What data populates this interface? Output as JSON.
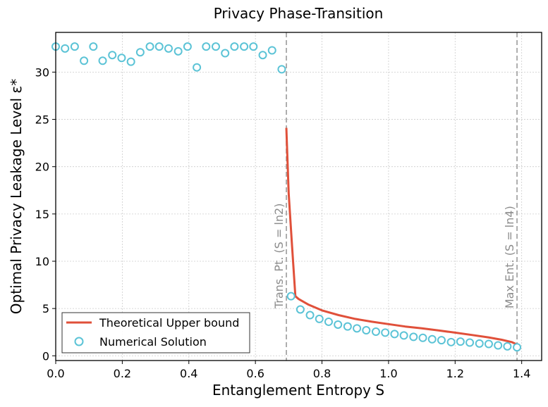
{
  "chart_data": {
    "type": "line+scatter",
    "title": "Privacy Phase-Transition",
    "xlabel": "Entanglement Entropy S",
    "ylabel": "Optimal Privacy Leakage Level ε*",
    "xlim": [
      0.0,
      1.46
    ],
    "ylim": [
      -0.5,
      34.2
    ],
    "xticks": [
      0.0,
      0.2,
      0.4,
      0.6,
      0.8,
      1.0,
      1.2,
      1.4
    ],
    "xtick_labels": [
      "0.0",
      "0.2",
      "0.4",
      "0.6",
      "0.8",
      "1.0",
      "1.2",
      "1.4"
    ],
    "yticks": [
      0,
      5,
      10,
      15,
      20,
      25,
      30
    ],
    "ytick_labels": [
      "0",
      "5",
      "10",
      "15",
      "20",
      "25",
      "30"
    ],
    "grid": true,
    "legend_position": "bottom-left",
    "series": [
      {
        "name": "Theoretical Upper bound",
        "kind": "line",
        "color": "#e0503a",
        "x": [
          0.693,
          0.7,
          0.71,
          0.72,
          0.73,
          0.76,
          0.8,
          0.85,
          0.9,
          0.95,
          1.0,
          1.05,
          1.1,
          1.15,
          1.2,
          1.25,
          1.3,
          1.34,
          1.37,
          1.386
        ],
        "y": [
          24.1,
          17.2,
          11.6,
          6.3,
          6.0,
          5.4,
          4.8,
          4.3,
          3.9,
          3.6,
          3.35,
          3.1,
          2.9,
          2.68,
          2.45,
          2.2,
          1.95,
          1.7,
          1.45,
          1.2
        ]
      },
      {
        "name": "Numerical Solution",
        "kind": "scatter",
        "color": "#5bc3d6",
        "x": [
          0.0,
          0.028,
          0.057,
          0.085,
          0.113,
          0.141,
          0.17,
          0.198,
          0.226,
          0.254,
          0.283,
          0.311,
          0.339,
          0.368,
          0.396,
          0.424,
          0.452,
          0.481,
          0.509,
          0.537,
          0.566,
          0.594,
          0.622,
          0.65,
          0.679,
          0.707,
          0.735,
          0.764,
          0.792,
          0.82,
          0.848,
          0.877,
          0.905,
          0.933,
          0.962,
          0.99,
          1.018,
          1.046,
          1.075,
          1.103,
          1.131,
          1.159,
          1.188,
          1.216,
          1.244,
          1.273,
          1.301,
          1.329,
          1.357,
          1.386
        ],
        "y": [
          32.7,
          32.5,
          32.7,
          31.2,
          32.7,
          31.2,
          31.8,
          31.5,
          31.1,
          32.1,
          32.7,
          32.7,
          32.5,
          32.2,
          32.7,
          30.5,
          32.7,
          32.7,
          32.0,
          32.7,
          32.7,
          32.7,
          31.8,
          32.3,
          30.3,
          6.3,
          4.9,
          4.3,
          3.9,
          3.6,
          3.3,
          3.1,
          2.9,
          2.7,
          2.55,
          2.45,
          2.3,
          2.15,
          2.0,
          1.9,
          1.75,
          1.65,
          1.45,
          1.5,
          1.4,
          1.3,
          1.25,
          1.1,
          1.0,
          0.9
        ]
      }
    ],
    "annotations": [
      {
        "text": "Trans. Pt. (S = ln2)",
        "x": 0.693,
        "y": 5.0
      },
      {
        "text": "Max Ent. (S = ln4)",
        "x": 1.386,
        "y": 5.0
      }
    ]
  },
  "colors": {
    "line": "#e0503a",
    "marker": "#5bc3d6",
    "vline": "#a6a6a6",
    "grid": "#cccccc",
    "annotation": "#8c8c8c"
  },
  "vlines": [
    0.693,
    1.386
  ]
}
